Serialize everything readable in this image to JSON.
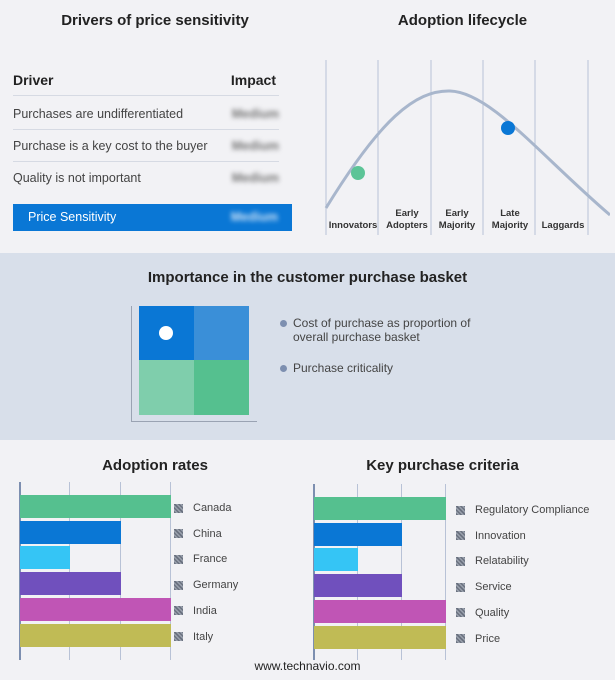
{
  "drivers": {
    "title": "Drivers of price sensitivity",
    "col_driver": "Driver",
    "col_impact": "Impact",
    "rows": [
      {
        "driver": "Purchases are undifferentiated",
        "impact": "Medium"
      },
      {
        "driver": "Purchase is a key cost to the buyer",
        "impact": "Medium"
      },
      {
        "driver": "Quality is not important",
        "impact": "Medium"
      }
    ],
    "summary": {
      "label": "Price Sensitivity",
      "impact": "Medium"
    }
  },
  "lifecycle": {
    "title": "Adoption lifecycle",
    "stages": [
      "Innovators",
      "Early Adopters",
      "Early Majority",
      "Late Majority",
      "Laggards"
    ],
    "markers": [
      {
        "stage": "Innovators",
        "color": "#5cc497"
      },
      {
        "stage": "Late Majority",
        "color": "#0a77d5"
      }
    ]
  },
  "basket": {
    "title": "Importance in the customer purchase basket",
    "legend": [
      "Cost of purchase as proportion of overall purchase basket",
      "Purchase criticality"
    ],
    "quadrant_colors": [
      "#0a77d5",
      "#3a8fd8",
      "#7fceac",
      "#55c08f"
    ],
    "selected_quadrant": "top-left"
  },
  "chart_data": [
    {
      "type": "bar",
      "title": "Adoption rates",
      "categories": [
        "Canada",
        "China",
        "France",
        "Germany",
        "India",
        "Italy"
      ],
      "values": [
        3,
        2,
        1,
        2,
        3,
        3
      ],
      "xlim": [
        0,
        3
      ],
      "grid": true,
      "legend": "right",
      "colors": [
        "#55c08f",
        "#0a77d5",
        "#35c5f5",
        "#7050bd",
        "#c055b5",
        "#c0bb55"
      ]
    },
    {
      "type": "bar",
      "title": "Key purchase criteria",
      "categories": [
        "Regulatory Compliance",
        "Innovation",
        "Relatability",
        "Service",
        "Quality",
        "Price"
      ],
      "values": [
        3,
        2,
        1,
        2,
        3,
        3
      ],
      "xlim": [
        0,
        3
      ],
      "grid": true,
      "legend": "right",
      "colors": [
        "#55c08f",
        "#0a77d5",
        "#35c5f5",
        "#7050bd",
        "#c055b5",
        "#c0bb55"
      ]
    }
  ],
  "footer": "www.technavio.com"
}
